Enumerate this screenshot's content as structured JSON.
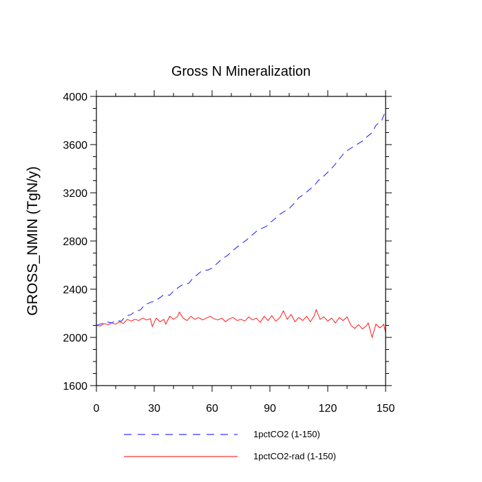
{
  "chart_data": {
    "type": "line",
    "title": "Gross N Mineralization",
    "xlabel": "",
    "ylabel": "GROSS_NMIN  (TgN/y)",
    "xlim": [
      0,
      150
    ],
    "ylim": [
      1600,
      4000
    ],
    "xticks": [
      0,
      30,
      60,
      90,
      120,
      150
    ],
    "yticks": [
      1600,
      2000,
      2400,
      2800,
      3200,
      3600,
      4000
    ],
    "grid": false,
    "legend_position": "bottom",
    "series": [
      {
        "name": "1pctCO2 (1-150)",
        "color": "#0000ff",
        "style": "dashed",
        "points": [
          [
            0,
            2100
          ],
          [
            3,
            2115
          ],
          [
            5,
            2130
          ],
          [
            8,
            2120
          ],
          [
            10,
            2140
          ],
          [
            13,
            2135
          ],
          [
            15,
            2175
          ],
          [
            18,
            2190
          ],
          [
            20,
            2215
          ],
          [
            23,
            2230
          ],
          [
            25,
            2270
          ],
          [
            28,
            2290
          ],
          [
            30,
            2300
          ],
          [
            33,
            2330
          ],
          [
            35,
            2355
          ],
          [
            38,
            2350
          ],
          [
            40,
            2385
          ],
          [
            43,
            2420
          ],
          [
            45,
            2440
          ],
          [
            48,
            2450
          ],
          [
            50,
            2490
          ],
          [
            53,
            2530
          ],
          [
            55,
            2555
          ],
          [
            58,
            2560
          ],
          [
            60,
            2575
          ],
          [
            63,
            2620
          ],
          [
            65,
            2650
          ],
          [
            68,
            2680
          ],
          [
            70,
            2710
          ],
          [
            73,
            2750
          ],
          [
            75,
            2775
          ],
          [
            78,
            2810
          ],
          [
            80,
            2840
          ],
          [
            83,
            2880
          ],
          [
            85,
            2900
          ],
          [
            88,
            2920
          ],
          [
            90,
            2950
          ],
          [
            93,
            2990
          ],
          [
            95,
            3020
          ],
          [
            98,
            3050
          ],
          [
            100,
            3070
          ],
          [
            103,
            3120
          ],
          [
            105,
            3160
          ],
          [
            108,
            3190
          ],
          [
            110,
            3220
          ],
          [
            113,
            3260
          ],
          [
            115,
            3300
          ],
          [
            118,
            3340
          ],
          [
            120,
            3370
          ],
          [
            123,
            3420
          ],
          [
            125,
            3460
          ],
          [
            128,
            3520
          ],
          [
            130,
            3550
          ],
          [
            133,
            3580
          ],
          [
            135,
            3600
          ],
          [
            138,
            3630
          ],
          [
            140,
            3660
          ],
          [
            143,
            3700
          ],
          [
            145,
            3760
          ],
          [
            148,
            3800
          ],
          [
            150,
            3880
          ]
        ]
      },
      {
        "name": "1pctCO2-rad (1-150)",
        "color": "#ff0000",
        "style": "solid",
        "points": [
          [
            0,
            2100
          ],
          [
            2,
            2095
          ],
          [
            4,
            2115
          ],
          [
            6,
            2105
          ],
          [
            8,
            2120
          ],
          [
            10,
            2110
          ],
          [
            12,
            2130
          ],
          [
            14,
            2115
          ],
          [
            16,
            2150
          ],
          [
            18,
            2135
          ],
          [
            20,
            2150
          ],
          [
            22,
            2140
          ],
          [
            24,
            2160
          ],
          [
            26,
            2145
          ],
          [
            28,
            2155
          ],
          [
            29,
            2090
          ],
          [
            31,
            2160
          ],
          [
            33,
            2130
          ],
          [
            35,
            2150
          ],
          [
            36,
            2110
          ],
          [
            38,
            2175
          ],
          [
            40,
            2150
          ],
          [
            42,
            2170
          ],
          [
            43,
            2210
          ],
          [
            45,
            2160
          ],
          [
            47,
            2140
          ],
          [
            49,
            2175
          ],
          [
            51,
            2150
          ],
          [
            53,
            2165
          ],
          [
            55,
            2145
          ],
          [
            57,
            2160
          ],
          [
            59,
            2175
          ],
          [
            61,
            2155
          ],
          [
            63,
            2145
          ],
          [
            65,
            2160
          ],
          [
            67,
            2130
          ],
          [
            69,
            2155
          ],
          [
            71,
            2165
          ],
          [
            73,
            2140
          ],
          [
            75,
            2150
          ],
          [
            77,
            2135
          ],
          [
            79,
            2170
          ],
          [
            81,
            2145
          ],
          [
            83,
            2160
          ],
          [
            85,
            2125
          ],
          [
            87,
            2175
          ],
          [
            89,
            2140
          ],
          [
            91,
            2180
          ],
          [
            93,
            2135
          ],
          [
            95,
            2160
          ],
          [
            97,
            2220
          ],
          [
            99,
            2150
          ],
          [
            101,
            2190
          ],
          [
            103,
            2130
          ],
          [
            105,
            2165
          ],
          [
            107,
            2140
          ],
          [
            109,
            2175
          ],
          [
            111,
            2130
          ],
          [
            113,
            2180
          ],
          [
            114,
            2230
          ],
          [
            116,
            2150
          ],
          [
            118,
            2170
          ],
          [
            120,
            2135
          ],
          [
            122,
            2160
          ],
          [
            124,
            2120
          ],
          [
            126,
            2165
          ],
          [
            128,
            2140
          ],
          [
            130,
            2170
          ],
          [
            132,
            2100
          ],
          [
            134,
            2075
          ],
          [
            136,
            2105
          ],
          [
            138,
            2070
          ],
          [
            140,
            2095
          ],
          [
            141,
            2120
          ],
          [
            142,
            2060
          ],
          [
            143,
            2000
          ],
          [
            145,
            2110
          ],
          [
            147,
            2080
          ],
          [
            148,
            2090
          ],
          [
            149,
            2110
          ],
          [
            150,
            2040
          ]
        ]
      }
    ]
  }
}
